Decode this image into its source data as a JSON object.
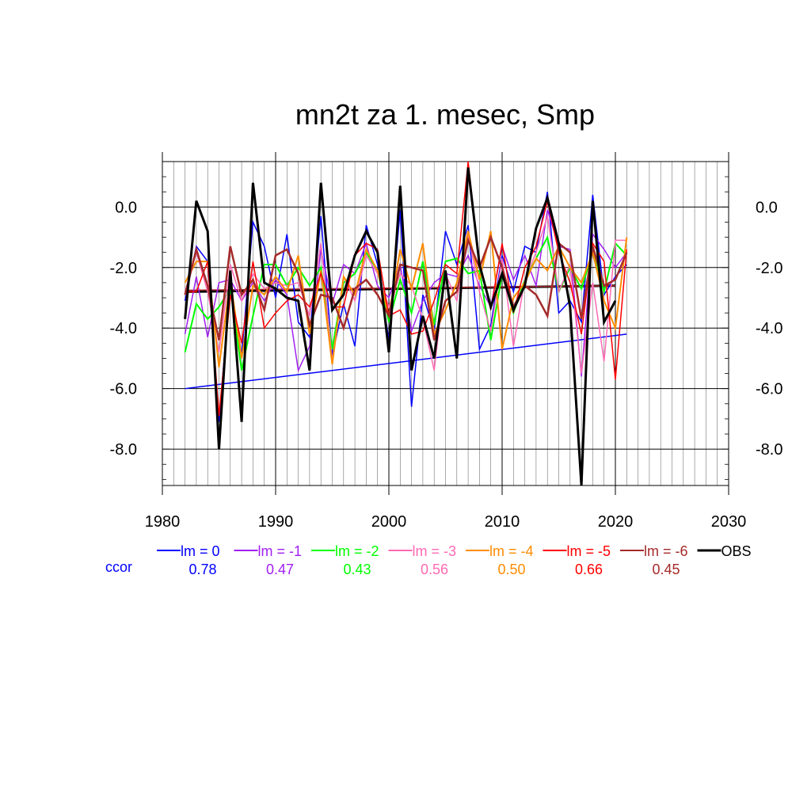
{
  "chart_data": {
    "type": "line",
    "title": "mn2t za 1. mesec, Smp",
    "xlim": [
      1980,
      2030
    ],
    "ylim": [
      -9.2,
      1.5
    ],
    "xticks": [
      1980,
      1990,
      2000,
      2010,
      2020,
      2030
    ],
    "xtick_labels": [
      "1980",
      "1990",
      "2000",
      "2010",
      "2020",
      "2030"
    ],
    "yticks": [
      0,
      -2,
      -4,
      -6,
      -8
    ],
    "ytick_labels": [
      "0.0",
      "-2.0",
      "-4.0",
      "-6.0",
      "-8.0"
    ],
    "grid": true,
    "x": [
      1982,
      1983,
      1984,
      1985,
      1986,
      1987,
      1988,
      1989,
      1990,
      1991,
      1992,
      1993,
      1994,
      1995,
      1996,
      1997,
      1998,
      1999,
      2000,
      2001,
      2002,
      2003,
      2004,
      2005,
      2006,
      2007,
      2008,
      2009,
      2010,
      2011,
      2012,
      2013,
      2014,
      2015,
      2016,
      2017,
      2018,
      2019,
      2020,
      2021
    ],
    "series": [
      {
        "name": "lm = 0",
        "color": "#0000ff",
        "width": 1.5,
        "values": [
          -3.1,
          -1.3,
          -1.8,
          -7.1,
          -2.5,
          -4.9,
          -0.5,
          -1.3,
          -3.0,
          -0.9,
          -3.8,
          -4.3,
          -0.3,
          -4.9,
          -3.2,
          -4.6,
          -0.6,
          -1.9,
          -4.4,
          -0.1,
          -6.6,
          -2.9,
          -4.1,
          -0.8,
          -1.9,
          -0.6,
          -4.7,
          -3.9,
          -1.6,
          -2.8,
          -1.3,
          -1.5,
          0.5,
          -3.5,
          -3.1,
          -3.8,
          0.4,
          -2.9,
          -2.3,
          -1.9
        ]
      },
      {
        "name": "lm = -1",
        "color": "#a020f0",
        "width": 1.5,
        "values": [
          -4.2,
          -2.3,
          -4.3,
          -2.5,
          -2.4,
          -3.1,
          -2.5,
          -3.1,
          -2.4,
          -2.9,
          -5.4,
          -4.6,
          -1.4,
          -3.2,
          -1.9,
          -2.2,
          -1.2,
          -2.6,
          -3.0,
          -1.9,
          -4.1,
          -3.1,
          -2.5,
          -2.2,
          -2.3,
          -1.6,
          -2.6,
          -3.3,
          -1.3,
          -2.4,
          -1.6,
          -2.6,
          -0.1,
          -1.3,
          -1.4,
          -5.6,
          -0.9,
          -1.4,
          -2.0,
          -1.5
        ]
      },
      {
        "name": "lm = -2",
        "color": "#00ff00",
        "width": 2,
        "values": [
          -4.8,
          -3.2,
          -3.7,
          -3.3,
          -2.7,
          -5.4,
          -3.6,
          -1.9,
          -1.9,
          -2.6,
          -2.0,
          -2.6,
          -2.0,
          -4.7,
          -2.5,
          -2.2,
          -1.5,
          -2.1,
          -3.8,
          -2.4,
          -3.5,
          -1.8,
          -3.9,
          -1.8,
          -1.7,
          -2.2,
          -2.1,
          -4.4,
          -2.2,
          -3.5,
          -2.4,
          -1.7,
          -1.0,
          -2.8,
          -2.0,
          -2.7,
          -1.5,
          -2.8,
          -1.2,
          -1.6
        ]
      },
      {
        "name": "lm = -3",
        "color": "#ff69b4",
        "width": 1.5,
        "values": [
          -2.8,
          -1.5,
          -2.8,
          -4.8,
          -1.9,
          -3.1,
          -2.2,
          -2.7,
          -2.5,
          -2.6,
          -2.5,
          -3.6,
          -1.2,
          -5.1,
          -2.3,
          -3.1,
          -1.6,
          -2.2,
          -3.3,
          -2.2,
          -2.6,
          -3.7,
          -5.4,
          -2.2,
          -3.1,
          -0.9,
          -2.8,
          -4.1,
          -1.7,
          -4.6,
          -2.4,
          -1.5,
          -0.3,
          -2.8,
          -1.9,
          -5.5,
          -2.5,
          -5.1,
          -1.1,
          -1.1
        ]
      },
      {
        "name": "lm = -4",
        "color": "#ff8c00",
        "width": 2,
        "values": [
          -2.5,
          -1.8,
          -1.8,
          -5.3,
          -2.4,
          -5.0,
          -2.6,
          -2.9,
          -2.3,
          -2.8,
          -1.6,
          -4.2,
          -2.1,
          -5.2,
          -2.3,
          -2.9,
          -1.4,
          -2.1,
          -3.6,
          -1.4,
          -2.7,
          -1.2,
          -4.2,
          -3.4,
          -2.5,
          -0.8,
          -2.4,
          -0.8,
          -4.7,
          -3.0,
          -2.5,
          -1.7,
          -2.1,
          -1.3,
          -2.0,
          -2.5,
          -1.5,
          -3.1,
          -4.0,
          -1.0
        ]
      },
      {
        "name": "lm = -5",
        "color": "#ff0000",
        "width": 1.5,
        "values": [
          -2.8,
          -2.8,
          -1.8,
          -6.9,
          -2.9,
          -4.5,
          -1.8,
          -4.0,
          -3.5,
          -3.1,
          -2.9,
          -3.3,
          -2.2,
          -3.3,
          -3.3,
          -1.6,
          -1.2,
          -1.4,
          -3.6,
          -3.4,
          -4.2,
          -4.1,
          -3.1,
          -1.9,
          -2.2,
          1.5,
          -1.9,
          -3.4,
          -1.2,
          -3.5,
          -2.0,
          -1.3,
          0.2,
          -1.5,
          -2.5,
          -4.2,
          -1.2,
          -1.8,
          -5.7,
          -1.4
        ]
      },
      {
        "name": "lm = -6",
        "color": "#a52a2a",
        "width": 2.5,
        "values": [
          -2.9,
          -1.4,
          -2.6,
          -4.4,
          -1.3,
          -2.9,
          -2.4,
          -3.4,
          -1.6,
          -1.4,
          -2.2,
          -3.9,
          -2.9,
          -3.0,
          -4.0,
          -2.7,
          -2.4,
          -2.9,
          -3.6,
          -1.9,
          -2.0,
          -2.1,
          -4.4,
          -3.1,
          -2.8,
          -1.1,
          -2.0,
          -1.0,
          -2.0,
          -3.3,
          -2.6,
          -2.9,
          -3.6,
          -1.2,
          -1.5,
          -3.7,
          -1.3,
          -2.6,
          -2.4,
          -1.5
        ]
      },
      {
        "name": "OBS",
        "color": "#000000",
        "width": 3,
        "values": [
          -3.7,
          0.2,
          -0.8,
          -8.0,
          -2.1,
          -7.1,
          0.8,
          -2.5,
          -2.7,
          -3.0,
          -3.1,
          -5.4,
          0.8,
          -3.4,
          -2.9,
          -1.6,
          -0.8,
          -1.5,
          -4.8,
          0.7,
          -5.4,
          -3.6,
          -5.0,
          -2.1,
          -5.0,
          1.3,
          -1.9,
          -3.3,
          -2.2,
          -3.4,
          -2.6,
          -0.7,
          0.3,
          -1.2,
          -3.3,
          -9.2,
          0.2,
          -3.8,
          -3.1,
          null
        ]
      }
    ],
    "trend_lines": [
      {
        "color": "#0000ff",
        "width": 1.5,
        "x": [
          1982,
          2021
        ],
        "y": [
          -6.0,
          -4.2
        ]
      },
      {
        "color": "#000000",
        "width": 3,
        "x": [
          1982,
          2020
        ],
        "y": [
          -2.8,
          -2.6
        ]
      },
      {
        "color": "#a52a2a",
        "width": 1.5,
        "x": [
          1982,
          2020
        ],
        "y": [
          -2.75,
          -2.6
        ]
      }
    ],
    "legend": {
      "placement": "bottom",
      "ccor_label": "ccor",
      "ccor_label_color": "#0000ff",
      "entries": [
        {
          "label": "lm = 0",
          "color": "#0000ff",
          "ccor": "0.78"
        },
        {
          "label": "lm = -1",
          "color": "#a020f0",
          "ccor": "0.47"
        },
        {
          "label": "lm = -2",
          "color": "#00ff00",
          "ccor": "0.43"
        },
        {
          "label": "lm = -3",
          "color": "#ff69b4",
          "ccor": "0.56"
        },
        {
          "label": "lm = -4",
          "color": "#ff8c00",
          "ccor": "0.50"
        },
        {
          "label": "lm = -5",
          "color": "#ff0000",
          "ccor": "0.66"
        },
        {
          "label": "lm = -6",
          "color": "#a52a2a",
          "ccor": "0.45"
        },
        {
          "label": "OBS",
          "color": "#000000",
          "ccor": ""
        }
      ]
    }
  }
}
